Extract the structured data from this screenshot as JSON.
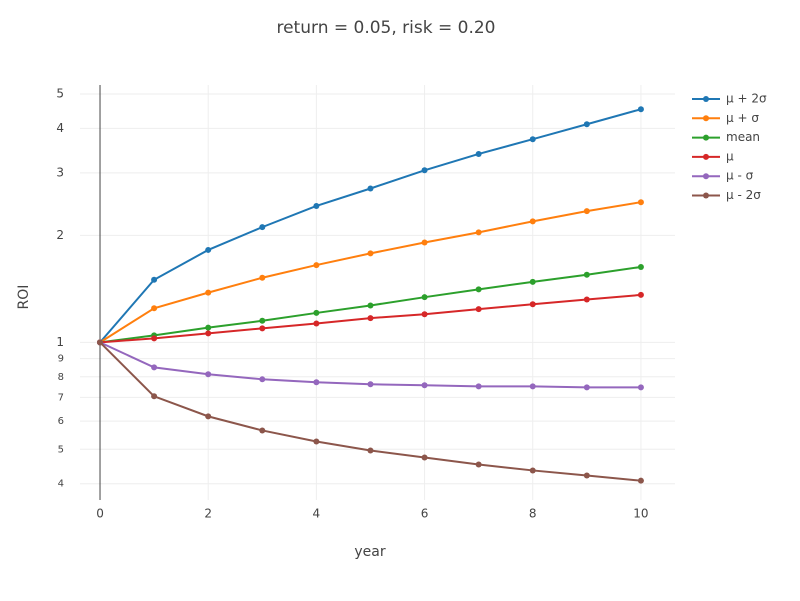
{
  "chart_data": {
    "type": "line",
    "title": "return = 0.05, risk = 0.20",
    "x_label": "year",
    "y_label": "ROI",
    "x": [
      0,
      1,
      2,
      3,
      4,
      5,
      6,
      7,
      8,
      9,
      10
    ],
    "series": [
      {
        "name": "μ + 2σ",
        "color": "#1f77b4",
        "values": [
          1,
          1.5,
          1.82,
          2.11,
          2.42,
          2.71,
          3.05,
          3.39,
          3.73,
          4.11,
          4.53
        ]
      },
      {
        "name": "μ + σ",
        "color": "#ff7f0e",
        "values": [
          1,
          1.247,
          1.38,
          1.52,
          1.65,
          1.78,
          1.91,
          2.04,
          2.19,
          2.34,
          2.48
        ]
      },
      {
        "name": "mean",
        "color": "#2ca02c",
        "values": [
          1,
          1.046,
          1.1,
          1.15,
          1.21,
          1.27,
          1.34,
          1.41,
          1.48,
          1.55,
          1.63
        ]
      },
      {
        "name": "μ",
        "color": "#d62728",
        "values": [
          1,
          1.026,
          1.06,
          1.095,
          1.13,
          1.17,
          1.2,
          1.24,
          1.28,
          1.32,
          1.36
        ]
      },
      {
        "name": "μ - σ",
        "color": "#9467bd",
        "values": [
          1,
          0.85,
          0.813,
          0.787,
          0.772,
          0.762,
          0.757,
          0.752,
          0.752,
          0.747,
          0.747
        ]
      },
      {
        "name": "μ - 2σ",
        "color": "#8c564b",
        "values": [
          1,
          0.705,
          0.619,
          0.565,
          0.526,
          0.496,
          0.474,
          0.453,
          0.436,
          0.422,
          0.408
        ]
      }
    ],
    "xlim": [
      -0.37,
      10.63
    ],
    "xticks": [
      0,
      2,
      4,
      6,
      8,
      10
    ],
    "ylim": [
      0.36,
      5.3
    ],
    "y_log": true,
    "yticks": [
      {
        "value": 0.4,
        "label": "4"
      },
      {
        "value": 0.5,
        "label": "5"
      },
      {
        "value": 0.6,
        "label": "6"
      },
      {
        "value": 0.7,
        "label": "7"
      },
      {
        "value": 0.8,
        "label": "8"
      },
      {
        "value": 0.9,
        "label": "9"
      },
      1,
      2,
      3,
      4,
      5
    ],
    "grid": true,
    "legend": "top-right"
  }
}
